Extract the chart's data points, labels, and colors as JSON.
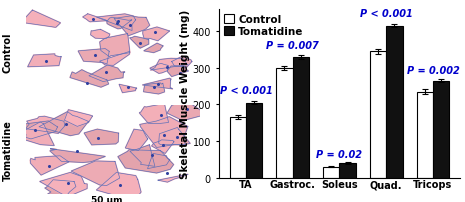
{
  "categories": [
    "TA",
    "Gastroc.",
    "Soleus",
    "Quad.",
    "Tricops"
  ],
  "control_values": [
    165,
    300,
    30,
    345,
    235
  ],
  "tomatidine_values": [
    205,
    330,
    40,
    415,
    265
  ],
  "control_errors": [
    5,
    6,
    2,
    7,
    8
  ],
  "tomatidine_errors": [
    5,
    5,
    2,
    5,
    5
  ],
  "p_values": [
    "P < 0.001",
    "P = 0.007",
    "P = 0.02",
    "P < 0.001",
    "P = 0.002"
  ],
  "ylabel": "Skeletal Muscle Weight (mg)",
  "ylim": [
    0,
    460
  ],
  "yticks": [
    0,
    100,
    200,
    300,
    400
  ],
  "bar_width": 0.35,
  "control_color": "#ffffff",
  "tomatidine_color": "#111111",
  "edgecolor": "#000000",
  "bg_color": "#ffffff",
  "label_fontsize": 7.5,
  "tick_fontsize": 7,
  "p_fontsize": 7,
  "img_bg": "#f5c8d0",
  "cell_color": "#e8a0b0",
  "border_color": "#8090c8"
}
